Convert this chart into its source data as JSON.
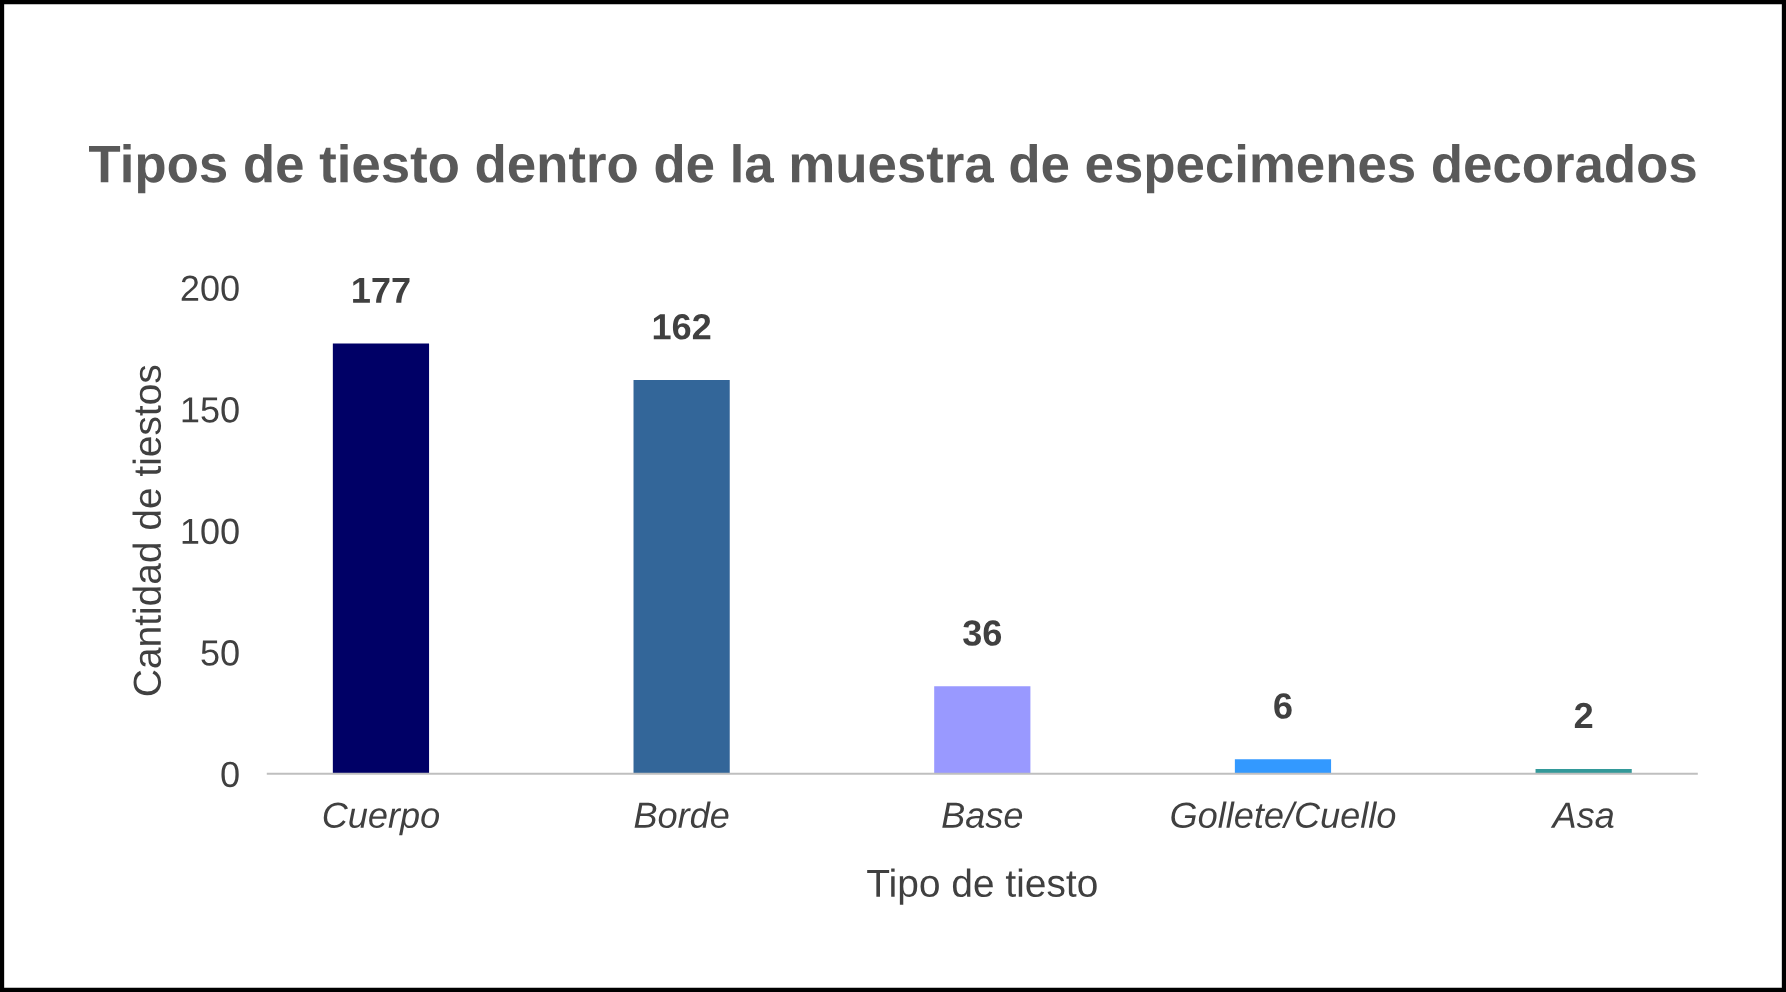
{
  "chart_data": {
    "type": "bar",
    "title": "Tipos de tiesto dentro de la muestra de especimenes decorados",
    "xlabel": "Tipo de tiesto",
    "ylabel": "Cantidad de tiestos",
    "categories": [
      "Cuerpo",
      "Borde",
      "Base",
      "Gollete/Cuello",
      "Asa"
    ],
    "values": [
      177,
      162,
      36,
      6,
      2
    ],
    "colors": [
      "#000066",
      "#336699",
      "#9999ff",
      "#3399ff",
      "#339999"
    ],
    "ylim": [
      0,
      200
    ],
    "yticks": [
      0,
      50,
      100,
      150,
      200
    ],
    "data_labels": true,
    "grid": false,
    "legend": false
  }
}
